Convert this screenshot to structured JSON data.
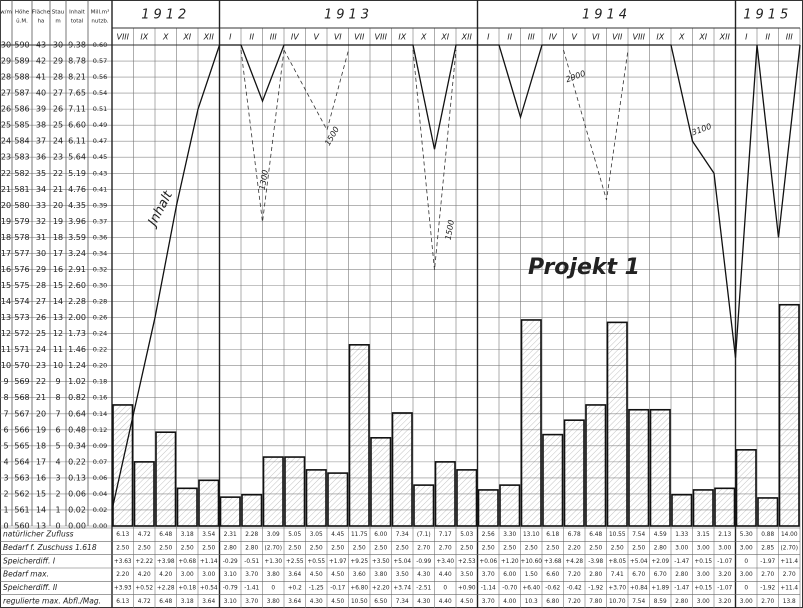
{
  "header": {
    "years": [
      {
        "year": "1912",
        "months": [
          "VIII",
          "IX",
          "X",
          "XI",
          "XII"
        ]
      },
      {
        "year": "1913",
        "months": [
          "I",
          "II",
          "III",
          "IV",
          "V",
          "VI",
          "VII",
          "VIII",
          "IX",
          "X",
          "XI",
          "XII"
        ]
      },
      {
        "year": "1914",
        "months": [
          "I",
          "II",
          "III",
          "IV",
          "V",
          "VI",
          "VII",
          "VIII",
          "IX",
          "X",
          "XI",
          "XII"
        ]
      },
      {
        "year": "1915",
        "months": [
          "I",
          "II",
          "III"
        ]
      }
    ]
  },
  "scale_table": {
    "headers": [
      [
        "w/m"
      ],
      [
        "Höhe",
        "ü.M."
      ],
      [
        "Fläche",
        "ha"
      ],
      [
        "Stau",
        "m"
      ],
      [
        "Inhalt",
        "total"
      ],
      [
        "Mill.m³",
        "nutzb."
      ]
    ],
    "rows": [
      [
        "30",
        "590",
        "43",
        "30",
        "9.38",
        "0.60"
      ],
      [
        "29",
        "589",
        "42",
        "29",
        "8.78",
        "0.57"
      ],
      [
        "28",
        "588",
        "41",
        "28",
        "8.21",
        "0.56"
      ],
      [
        "27",
        "587",
        "40",
        "27",
        "7.65",
        "0.54"
      ],
      [
        "26",
        "586",
        "39",
        "26",
        "7.11",
        "0.51"
      ],
      [
        "25",
        "585",
        "38",
        "25",
        "6.60",
        "0.49"
      ],
      [
        "24",
        "584",
        "37",
        "24",
        "6.11",
        "0.47"
      ],
      [
        "23",
        "583",
        "36",
        "23",
        "5.64",
        "0.45"
      ],
      [
        "22",
        "582",
        "35",
        "22",
        "5.19",
        "0.43"
      ],
      [
        "21",
        "581",
        "34",
        "21",
        "4.76",
        "0.41"
      ],
      [
        "20",
        "580",
        "33",
        "20",
        "4.35",
        "0.39"
      ],
      [
        "19",
        "579",
        "32",
        "19",
        "3.96",
        "0.37"
      ],
      [
        "18",
        "578",
        "31",
        "18",
        "3.59",
        "0.36"
      ],
      [
        "17",
        "577",
        "30",
        "17",
        "3.24",
        "0.34"
      ],
      [
        "16",
        "576",
        "29",
        "16",
        "2.91",
        "0.32"
      ],
      [
        "15",
        "575",
        "28",
        "15",
        "2.60",
        "0.30"
      ],
      [
        "14",
        "574",
        "27",
        "14",
        "2.28",
        "0.28"
      ],
      [
        "13",
        "573",
        "26",
        "13",
        "2.00",
        "0.26"
      ],
      [
        "12",
        "572",
        "25",
        "12",
        "1.73",
        "0.24"
      ],
      [
        "11",
        "571",
        "24",
        "11",
        "1.46",
        "0.22"
      ],
      [
        "10",
        "570",
        "23",
        "10",
        "1.24",
        "0.20"
      ],
      [
        "9",
        "569",
        "22",
        "9",
        "1.02",
        "0.18"
      ],
      [
        "8",
        "568",
        "21",
        "8",
        "0.82",
        "0.16"
      ],
      [
        "7",
        "567",
        "20",
        "7",
        "0.64",
        "0.14"
      ],
      [
        "6",
        "566",
        "19",
        "6",
        "0.48",
        "0.12"
      ],
      [
        "5",
        "565",
        "18",
        "5",
        "0.34",
        "0.09"
      ],
      [
        "4",
        "564",
        "17",
        "4",
        "0.22",
        "0.07"
      ],
      [
        "3",
        "563",
        "16",
        "3",
        "0.13",
        "0.06"
      ],
      [
        "2",
        "562",
        "15",
        "2",
        "0.06",
        "0.04"
      ],
      [
        "1",
        "561",
        "14",
        "1",
        "0.02",
        "0.02"
      ],
      [
        "0",
        "560",
        "13",
        "0",
        "0.00",
        "0.00"
      ]
    ]
  },
  "chart": {
    "ylim": [
      0,
      0.6
    ],
    "bars": [
      0.151,
      0.08,
      0.117,
      0.047,
      0.057,
      0.036,
      0.039,
      0.086,
      0.086,
      0.07,
      0.066,
      0.226,
      0.11,
      0.141,
      0.051,
      0.08,
      0.07,
      0.045,
      0.051,
      0.257,
      0.114,
      0.132,
      0.151,
      0.254,
      0.145,
      0.145,
      0.039,
      0.045,
      0.047,
      0.095,
      0.035,
      0.276
    ],
    "content_line": {
      "name": "Jnhalt",
      "ylim": [
        0,
        30
      ],
      "values": [
        1,
        7,
        13,
        20,
        26,
        30,
        30,
        26.5,
        30,
        30,
        30,
        30,
        30,
        30,
        30,
        23.5,
        30,
        30,
        30,
        25.5,
        30,
        30,
        30,
        30,
        30,
        30,
        30,
        24,
        22,
        10.5,
        30,
        18,
        30
      ]
    },
    "annotations": [
      "Projekt 1",
      "1300",
      "1500",
      "2900",
      "1500",
      "3100"
    ]
  },
  "bottom_table": {
    "rows": [
      {
        "label": "natürlicher Zufluss",
        "values": [
          "6.13",
          "4.72",
          "6.48",
          "3.18",
          "3.54",
          "2.31",
          "2.28",
          "3.09",
          "5.05",
          "3.05",
          "4.45",
          "11.75",
          "6.00",
          "7.34",
          "(7.1)",
          "7.17",
          "5.03",
          "2.56",
          "3.30",
          "13.10",
          "6.18",
          "6.78",
          "6.48",
          "10.55",
          "7.54",
          "4.59",
          "1.33",
          "3.15",
          "2.13",
          "5.30",
          "0.88",
          "14.00"
        ]
      },
      {
        "label": "Bedarf f. Zuschuss 1.618",
        "values": [
          "2.50",
          "2.50",
          "2.50",
          "2.50",
          "2.50",
          "2.80",
          "2.80",
          "(2.70)",
          "2.50",
          "2.50",
          "2.50",
          "2.50",
          "2.50",
          "2.50",
          "2.70",
          "2.70",
          "2.50",
          "2.50",
          "2.50",
          "2.50",
          "2.50",
          "2.20",
          "2.50",
          "2.50",
          "2.50",
          "2.80",
          "3.00",
          "3.00",
          "3.00",
          "3.00",
          "2.85",
          "(2.70)"
        ]
      },
      {
        "label": "Speicherdiff. I",
        "values": [
          "+3.63",
          "+2.22",
          "+3.98",
          "+0.68",
          "+1.14",
          "-0.29",
          "-0.51",
          "+1.30",
          "+2.55",
          "+0.55",
          "+1.97",
          "+9.25",
          "+3.50",
          "+5.04",
          "-0.99",
          "+3.40",
          "+2.53",
          "+0.06",
          "+1.20",
          "+10.60",
          "+3.68",
          "+4.28",
          "-3.98",
          "+8.05",
          "+5.04",
          "+2.09",
          "-1.47",
          "+0.15",
          "-1.07",
          "0",
          "-1.97",
          "+11.4"
        ]
      },
      {
        "label": "Bedarf max.",
        "values": [
          "2.20",
          "4.20",
          "4.20",
          "3.00",
          "3.00",
          "3.10",
          "3.70",
          "3.80",
          "3.64",
          "4.50",
          "4.50",
          "3.60",
          "3.80",
          "3.50",
          "4.30",
          "4.40",
          "3.50",
          "3.70",
          "6.00",
          "1.50",
          "6.60",
          "7.20",
          "2.80",
          "7.41",
          "6.70",
          "6.70",
          "2.80",
          "3.00",
          "3.20",
          "3.00",
          "2.70",
          "2.70"
        ]
      },
      {
        "label": "Speicherdiff. II",
        "values": [
          "+3.93",
          "+0.52",
          "+2.28",
          "+0.18",
          "+0.54",
          "-0.79",
          "-1.41",
          "0",
          "+0.2",
          "-1.25",
          "-0.17",
          "+6.80",
          "+2.20",
          "+3.74",
          "-2.51",
          "0",
          "+0.90",
          "-1.14",
          "-0.70",
          "+6.40",
          "-0.62",
          "-0.42",
          "-1.92",
          "+3.70",
          "+0.84",
          "+1.89",
          "-1.47",
          "+0.15",
          "-1.07",
          "0",
          "-1.92",
          "+11.4"
        ]
      },
      {
        "label": "regulierte max. Abfl./Mag.",
        "values": [
          "6.13",
          "4.72",
          "6.48",
          "3.18",
          "3.64",
          "3.10",
          "3.70",
          "3.80",
          "3.64",
          "4.30",
          "4.50",
          "10.50",
          "6.50",
          "7.34",
          "4.30",
          "4.40",
          "4.50",
          "3.70",
          "4.00",
          "10.3",
          "6.80",
          "7.20",
          "7.80",
          "10.70",
          "7.54",
          "8.59",
          "2.80",
          "3.00",
          "3.20",
          "3.00",
          "2.70",
          "13.8"
        ]
      }
    ]
  }
}
